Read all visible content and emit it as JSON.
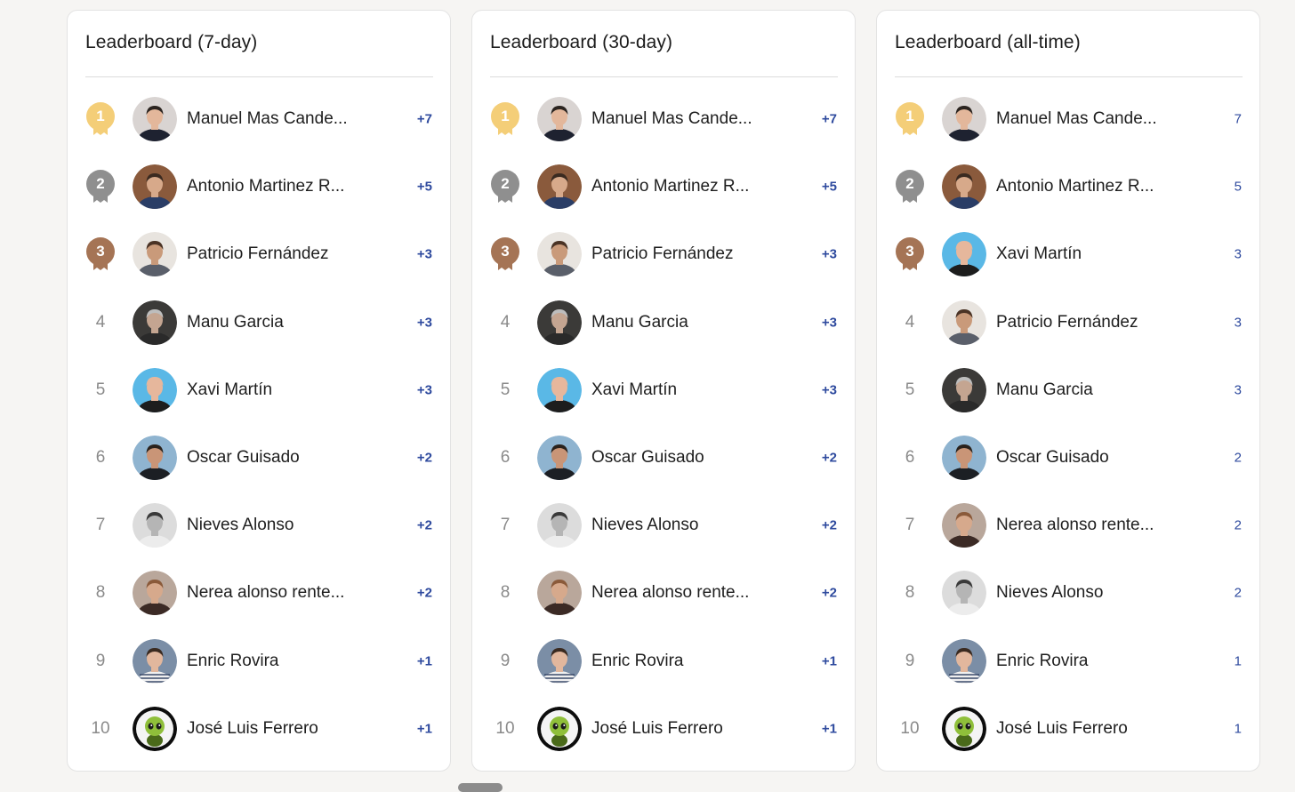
{
  "colors": {
    "gold": "#f4ce78",
    "silver": "#8f8f8f",
    "bronze": "#a57455",
    "score": "#2e4a9e",
    "rank": "#8a8a8a"
  },
  "boards": [
    {
      "title": "Leaderboard (7-day)",
      "entries": [
        {
          "rank": "1",
          "name": "Manuel Mas Cande...",
          "score": "+7",
          "avatar": "avatar-manuel",
          "medal": "gold"
        },
        {
          "rank": "2",
          "name": "Antonio Martinez R...",
          "score": "+5",
          "avatar": "avatar-antonio",
          "medal": "silver"
        },
        {
          "rank": "3",
          "name": "Patricio Fernández",
          "score": "+3",
          "avatar": "avatar-patricio",
          "medal": "bronze"
        },
        {
          "rank": "4",
          "name": "Manu Garcia",
          "score": "+3",
          "avatar": "avatar-manu",
          "medal": ""
        },
        {
          "rank": "5",
          "name": "Xavi Martín",
          "score": "+3",
          "avatar": "avatar-xavi",
          "medal": ""
        },
        {
          "rank": "6",
          "name": "Oscar Guisado",
          "score": "+2",
          "avatar": "avatar-oscar",
          "medal": ""
        },
        {
          "rank": "7",
          "name": "Nieves Alonso",
          "score": "+2",
          "avatar": "avatar-nieves",
          "medal": ""
        },
        {
          "rank": "8",
          "name": "Nerea alonso rente...",
          "score": "+2",
          "avatar": "avatar-nerea",
          "medal": ""
        },
        {
          "rank": "9",
          "name": "Enric Rovira",
          "score": "+1",
          "avatar": "avatar-enric",
          "medal": ""
        },
        {
          "rank": "10",
          "name": "José Luis Ferrero",
          "score": "+1",
          "avatar": "avatar-jose",
          "medal": ""
        }
      ]
    },
    {
      "title": "Leaderboard (30-day)",
      "entries": [
        {
          "rank": "1",
          "name": "Manuel Mas Cande...",
          "score": "+7",
          "avatar": "avatar-manuel",
          "medal": "gold"
        },
        {
          "rank": "2",
          "name": "Antonio Martinez R...",
          "score": "+5",
          "avatar": "avatar-antonio",
          "medal": "silver"
        },
        {
          "rank": "3",
          "name": "Patricio Fernández",
          "score": "+3",
          "avatar": "avatar-patricio",
          "medal": "bronze"
        },
        {
          "rank": "4",
          "name": "Manu Garcia",
          "score": "+3",
          "avatar": "avatar-manu",
          "medal": ""
        },
        {
          "rank": "5",
          "name": "Xavi Martín",
          "score": "+3",
          "avatar": "avatar-xavi",
          "medal": ""
        },
        {
          "rank": "6",
          "name": "Oscar Guisado",
          "score": "+2",
          "avatar": "avatar-oscar",
          "medal": ""
        },
        {
          "rank": "7",
          "name": "Nieves Alonso",
          "score": "+2",
          "avatar": "avatar-nieves",
          "medal": ""
        },
        {
          "rank": "8",
          "name": "Nerea alonso rente...",
          "score": "+2",
          "avatar": "avatar-nerea",
          "medal": ""
        },
        {
          "rank": "9",
          "name": "Enric Rovira",
          "score": "+1",
          "avatar": "avatar-enric",
          "medal": ""
        },
        {
          "rank": "10",
          "name": "José Luis Ferrero",
          "score": "+1",
          "avatar": "avatar-jose",
          "medal": ""
        }
      ]
    },
    {
      "title": "Leaderboard (all-time)",
      "entries": [
        {
          "rank": "1",
          "name": "Manuel Mas Cande...",
          "score": "7",
          "avatar": "avatar-manuel",
          "medal": "gold"
        },
        {
          "rank": "2",
          "name": "Antonio Martinez R...",
          "score": "5",
          "avatar": "avatar-antonio",
          "medal": "silver"
        },
        {
          "rank": "3",
          "name": "Xavi Martín",
          "score": "3",
          "avatar": "avatar-xavi",
          "medal": "bronze"
        },
        {
          "rank": "4",
          "name": "Patricio Fernández",
          "score": "3",
          "avatar": "avatar-patricio",
          "medal": ""
        },
        {
          "rank": "5",
          "name": "Manu Garcia",
          "score": "3",
          "avatar": "avatar-manu",
          "medal": ""
        },
        {
          "rank": "6",
          "name": "Oscar Guisado",
          "score": "2",
          "avatar": "avatar-oscar",
          "medal": ""
        },
        {
          "rank": "7",
          "name": "Nerea alonso rente...",
          "score": "2",
          "avatar": "avatar-nerea",
          "medal": ""
        },
        {
          "rank": "8",
          "name": "Nieves Alonso",
          "score": "2",
          "avatar": "avatar-nieves",
          "medal": ""
        },
        {
          "rank": "9",
          "name": "Enric Rovira",
          "score": "1",
          "avatar": "avatar-enric",
          "medal": ""
        },
        {
          "rank": "10",
          "name": "José Luis Ferrero",
          "score": "1",
          "avatar": "avatar-jose",
          "medal": ""
        }
      ]
    }
  ]
}
